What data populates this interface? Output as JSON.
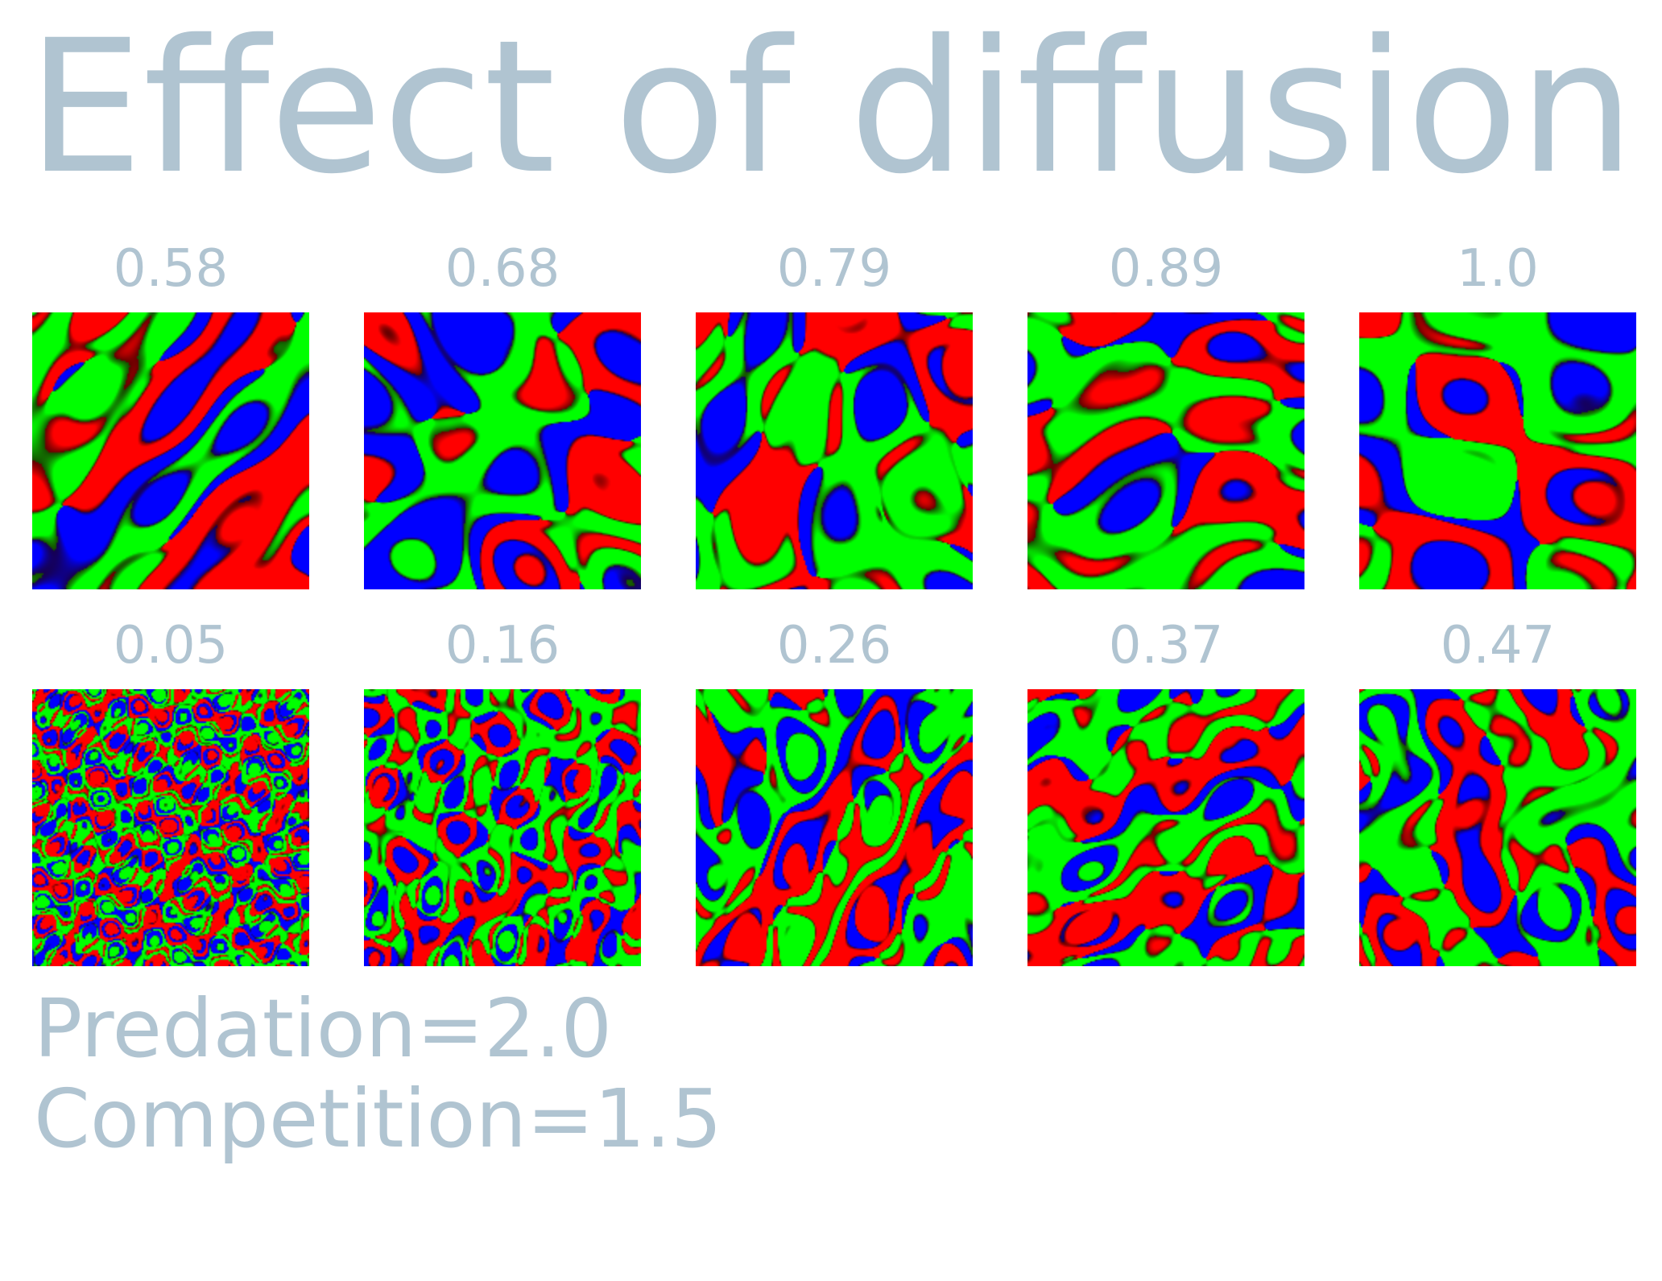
{
  "title": "Effect of diffusion",
  "rows": [
    {
      "panels": [
        {
          "label": "0.58",
          "seed": 11,
          "scale": 2.6
        },
        {
          "label": "0.68",
          "seed": 23,
          "scale": 2.4
        },
        {
          "label": "0.79",
          "seed": 37,
          "scale": 2.2
        },
        {
          "label": "0.89",
          "seed": 41,
          "scale": 2.1
        },
        {
          "label": "1.0",
          "seed": 53,
          "scale": 2.0
        }
      ]
    },
    {
      "panels": [
        {
          "label": "0.05",
          "seed": 61,
          "scale": 9.0
        },
        {
          "label": "0.16",
          "seed": 73,
          "scale": 6.0
        },
        {
          "label": "0.26",
          "seed": 89,
          "scale": 4.6
        },
        {
          "label": "0.37",
          "seed": 97,
          "scale": 3.6
        },
        {
          "label": "0.47",
          "seed": 101,
          "scale": 3.1
        }
      ]
    }
  ],
  "caption": {
    "line1": "Predation=2.0",
    "line2": "Competition=1.5"
  },
  "colors": {
    "text": "#b0c4d1",
    "species": [
      "#ff0000",
      "#00ff00",
      "#0000ff"
    ],
    "boundary": "#200000"
  }
}
